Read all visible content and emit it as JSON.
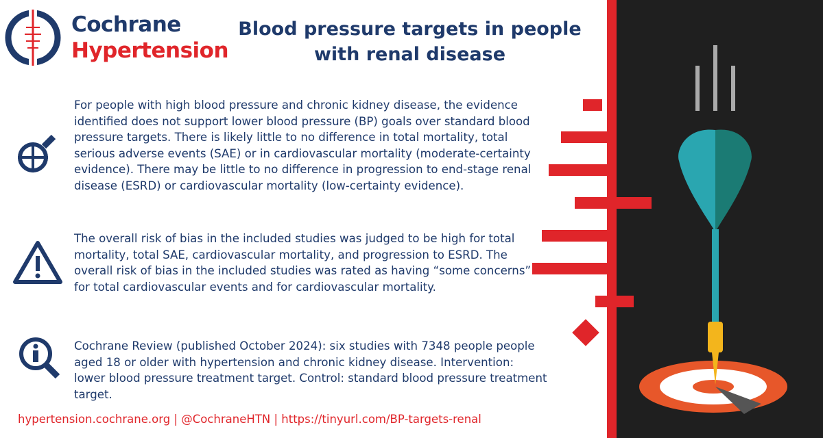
{
  "header": {
    "brand": [
      "Cochrane",
      "Hypertension"
    ],
    "title": [
      "Blood pressure targets in people",
      "with renal disease"
    ]
  },
  "sections": [
    {
      "text": "For people with high blood pressure and chronic kidney disease, the evidence identified does not support lower blood pressure (BP) goals over standard blood pressure targets. There is likely little to no difference in total mortality, total serious adverse events (SAE) or in cardiovascular mortality (moderate-certainty evidence). There may be little to no difference in progression to end-stage renal disease (ESRD) or cardiovascular mortality (low-certainty evidence)."
    },
    {
      "text": "The overall risk of bias in the included studies was judged to be high for total mortality, total SAE, cardiovascular mortality, and progression to ESRD. The overall risk of bias in the included studies was rated as having “some concerns” for total cardiovascular events and for cardiovascular mortality."
    },
    {
      "text": "Cochrane Review (published October 2024): six studies with 7348 people people aged 18 or older with hypertension and chronic kidney disease. Intervention: lower blood pressure treatment target. Control: standard blood pressure treatment target."
    }
  ],
  "footer": {
    "text": "hypertension.cochrane.org | @CochraneHTN | https://tinyurl.com/BP-targets-renal"
  }
}
